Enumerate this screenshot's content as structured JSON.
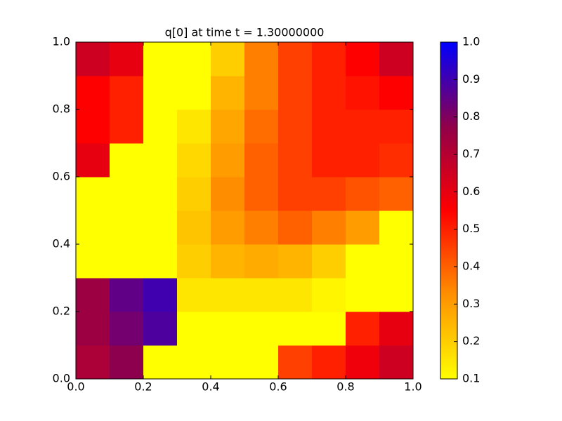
{
  "chart_data": {
    "type": "heatmap",
    "title": "q[0] at time t =     1.30000000",
    "xlim": [
      0,
      1
    ],
    "ylim": [
      0,
      1
    ],
    "xticks": [
      {
        "value": 0,
        "label": "0.0"
      },
      0.2,
      0.4,
      0.6,
      0.8,
      {
        "value": 1,
        "label": "1.0"
      }
    ],
    "yticks": [
      {
        "value": 0,
        "label": "0.0"
      },
      0.2,
      0.4,
      0.6,
      0.8,
      {
        "value": 1,
        "label": "1.0"
      }
    ],
    "clim": [
      0.1,
      1.0
    ],
    "cticks": [
      0.1,
      0.2,
      0.3,
      0.4,
      0.5,
      0.6,
      0.7,
      0.8,
      0.9,
      {
        "value": 1,
        "label": "1.0"
      }
    ],
    "colormap": [
      "#ffff00",
      "#ff9000",
      "#ff0000",
      "#90004a",
      "#0000ff"
    ],
    "z": [
      [
        0.72,
        0.78,
        0.1,
        0.1,
        0.1,
        0.1,
        0.45,
        0.5,
        0.58,
        0.65
      ],
      [
        0.75,
        0.82,
        0.88,
        0.1,
        0.1,
        0.1,
        0.1,
        0.1,
        0.5,
        0.6
      ],
      [
        0.75,
        0.85,
        0.9,
        0.15,
        0.15,
        0.15,
        0.15,
        0.12,
        0.1,
        0.1
      ],
      [
        0.1,
        0.1,
        0.1,
        0.2,
        0.25,
        0.27,
        0.25,
        0.2,
        0.1,
        0.1
      ],
      [
        0.1,
        0.1,
        0.1,
        0.22,
        0.3,
        0.35,
        0.4,
        0.35,
        0.3,
        0.1
      ],
      [
        0.1,
        0.1,
        0.1,
        0.2,
        0.33,
        0.4,
        0.45,
        0.45,
        0.42,
        0.4
      ],
      [
        0.6,
        0.1,
        0.1,
        0.18,
        0.3,
        0.4,
        0.45,
        0.5,
        0.5,
        0.48
      ],
      [
        0.55,
        0.5,
        0.1,
        0.15,
        0.28,
        0.38,
        0.45,
        0.5,
        0.5,
        0.5
      ],
      [
        0.55,
        0.5,
        0.1,
        0.1,
        0.25,
        0.35,
        0.45,
        0.5,
        0.52,
        0.55
      ],
      [
        0.65,
        0.6,
        0.1,
        0.1,
        0.2,
        0.35,
        0.45,
        0.5,
        0.55,
        0.65
      ]
    ]
  }
}
